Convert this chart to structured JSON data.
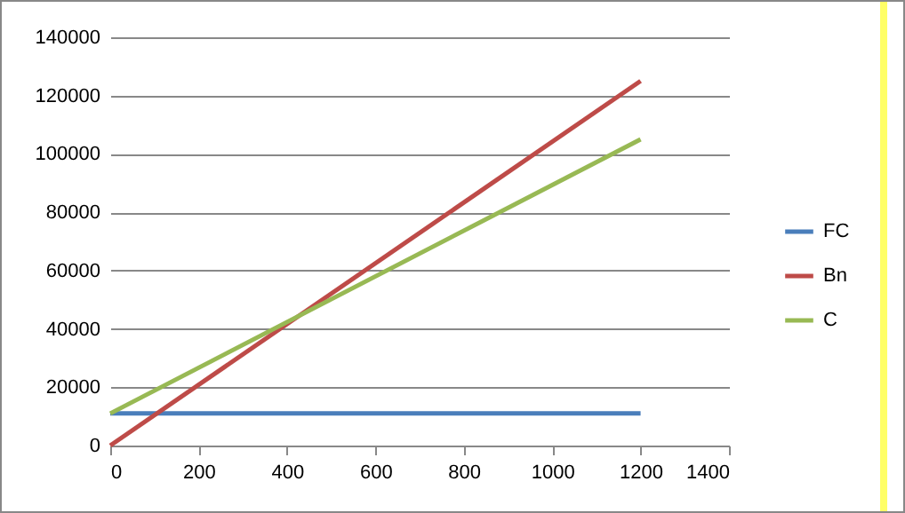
{
  "chart_data": {
    "type": "line",
    "x": [
      0,
      1200
    ],
    "series": [
      {
        "name": "FC",
        "color": "#4a7ebb",
        "values": [
          11000,
          11000
        ]
      },
      {
        "name": "Bn",
        "color": "#be4b48",
        "values": [
          0,
          125000
        ]
      },
      {
        "name": "C",
        "color": "#98b954",
        "values": [
          11000,
          105000
        ]
      }
    ],
    "xlim": [
      0,
      1400
    ],
    "xticks": [
      0,
      200,
      400,
      600,
      800,
      1000,
      1200,
      1400
    ],
    "ylim": [
      0,
      140000
    ],
    "yticks": [
      0,
      20000,
      40000,
      60000,
      80000,
      100000,
      120000,
      140000
    ],
    "grid": "y",
    "legend": "right",
    "marker": "none",
    "line_style": "solid"
  }
}
